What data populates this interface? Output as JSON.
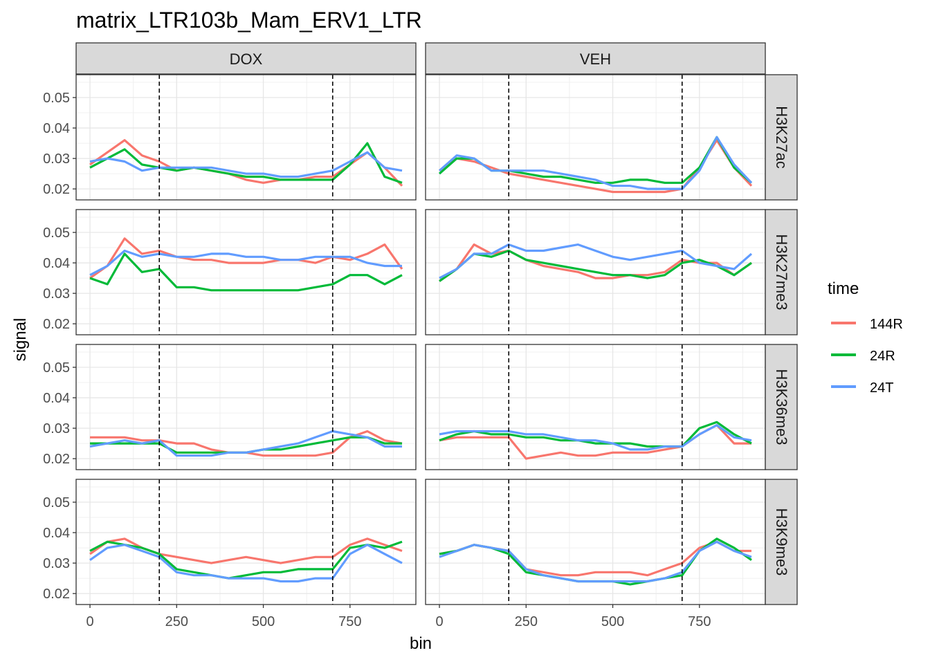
{
  "chart_data": {
    "type": "line",
    "title": "matrix_LTR103b_Mam_ERV1_LTR",
    "xlabel": "bin",
    "ylabel": "signal",
    "xlim": [
      -40,
      940
    ],
    "ylim": [
      0.0164,
      0.0575
    ],
    "x_ticks": [
      0,
      250,
      500,
      750
    ],
    "x_tick_labels": [
      "0",
      "250",
      "500",
      "750"
    ],
    "y_ticks": [
      0.02,
      0.03,
      0.04,
      0.05
    ],
    "y_tick_labels": [
      "0.02",
      "0.03",
      "0.04",
      "0.05"
    ],
    "vlines": [
      200,
      700
    ],
    "grid": true,
    "legend": {
      "title": "time",
      "position": "right",
      "entries": [
        "144R",
        "24R",
        "24T"
      ]
    },
    "colors": {
      "144R": "#F8766D",
      "24R": "#00BA38",
      "24T": "#619CFF"
    },
    "col_facets": [
      "DOX",
      "VEH"
    ],
    "row_facets": [
      "H3K27ac",
      "H3K27me3",
      "H3K36me3",
      "H3K9me3"
    ],
    "x": [
      0,
      50,
      100,
      150,
      200,
      250,
      300,
      350,
      400,
      450,
      500,
      550,
      600,
      650,
      700,
      750,
      800,
      850,
      900
    ],
    "panels": {
      "DOX|H3K27ac": {
        "144R": [
          0.028,
          0.032,
          0.036,
          0.031,
          0.029,
          0.026,
          0.027,
          0.026,
          0.025,
          0.023,
          0.022,
          0.023,
          0.023,
          0.024,
          0.024,
          0.028,
          0.032,
          0.027,
          0.021
        ],
        "24R": [
          0.027,
          0.03,
          0.033,
          0.028,
          0.027,
          0.026,
          0.027,
          0.026,
          0.025,
          0.024,
          0.024,
          0.023,
          0.023,
          0.023,
          0.023,
          0.028,
          0.035,
          0.024,
          0.022
        ],
        "24T": [
          0.029,
          0.03,
          0.029,
          0.026,
          0.027,
          0.027,
          0.027,
          0.027,
          0.026,
          0.025,
          0.025,
          0.024,
          0.024,
          0.025,
          0.026,
          0.029,
          0.032,
          0.027,
          0.026
        ]
      },
      "VEH|H3K27ac": {
        "144R": [
          0.026,
          0.03,
          0.029,
          0.027,
          0.025,
          0.024,
          0.023,
          0.022,
          0.021,
          0.02,
          0.019,
          0.019,
          0.019,
          0.019,
          0.02,
          0.027,
          0.036,
          0.027,
          0.021
        ],
        "24R": [
          0.025,
          0.03,
          0.03,
          0.026,
          0.026,
          0.025,
          0.024,
          0.024,
          0.023,
          0.022,
          0.022,
          0.023,
          0.023,
          0.022,
          0.022,
          0.027,
          0.037,
          0.027,
          0.022
        ],
        "24T": [
          0.026,
          0.031,
          0.03,
          0.026,
          0.026,
          0.026,
          0.026,
          0.025,
          0.024,
          0.023,
          0.021,
          0.021,
          0.02,
          0.02,
          0.02,
          0.026,
          0.037,
          0.028,
          0.022
        ]
      },
      "DOX|H3K27me3": {
        "144R": [
          0.035,
          0.039,
          0.048,
          0.043,
          0.044,
          0.042,
          0.041,
          0.041,
          0.04,
          0.04,
          0.04,
          0.041,
          0.041,
          0.04,
          0.042,
          0.041,
          0.043,
          0.046,
          0.038
        ],
        "24R": [
          0.035,
          0.033,
          0.043,
          0.037,
          0.038,
          0.032,
          0.032,
          0.031,
          0.031,
          0.031,
          0.031,
          0.031,
          0.031,
          0.032,
          0.033,
          0.036,
          0.036,
          0.033,
          0.036
        ],
        "24T": [
          0.036,
          0.039,
          0.044,
          0.042,
          0.043,
          0.042,
          0.042,
          0.043,
          0.043,
          0.042,
          0.042,
          0.041,
          0.041,
          0.042,
          0.042,
          0.042,
          0.04,
          0.039,
          0.039
        ]
      },
      "VEH|H3K27me3": {
        "144R": [
          0.034,
          0.038,
          0.046,
          0.043,
          0.044,
          0.041,
          0.039,
          0.038,
          0.037,
          0.035,
          0.035,
          0.036,
          0.036,
          0.037,
          0.041,
          0.04,
          0.04,
          0.036,
          0.04
        ],
        "24R": [
          0.034,
          0.038,
          0.043,
          0.042,
          0.044,
          0.041,
          0.04,
          0.039,
          0.038,
          0.037,
          0.036,
          0.036,
          0.035,
          0.036,
          0.04,
          0.041,
          0.039,
          0.036,
          0.04
        ],
        "24T": [
          0.035,
          0.038,
          0.043,
          0.043,
          0.046,
          0.044,
          0.044,
          0.045,
          0.046,
          0.044,
          0.042,
          0.041,
          0.042,
          0.043,
          0.044,
          0.04,
          0.039,
          0.038,
          0.043
        ]
      },
      "DOX|H3K36me3": {
        "144R": [
          0.027,
          0.027,
          0.027,
          0.026,
          0.026,
          0.025,
          0.025,
          0.023,
          0.022,
          0.022,
          0.021,
          0.021,
          0.021,
          0.021,
          0.022,
          0.027,
          0.029,
          0.026,
          0.025
        ],
        "24R": [
          0.025,
          0.025,
          0.025,
          0.025,
          0.025,
          0.022,
          0.022,
          0.022,
          0.022,
          0.022,
          0.023,
          0.023,
          0.024,
          0.025,
          0.026,
          0.027,
          0.027,
          0.025,
          0.025
        ],
        "24T": [
          0.024,
          0.025,
          0.026,
          0.025,
          0.026,
          0.021,
          0.021,
          0.021,
          0.022,
          0.022,
          0.023,
          0.024,
          0.025,
          0.027,
          0.029,
          0.028,
          0.027,
          0.024,
          0.024
        ]
      },
      "VEH|H3K36me3": {
        "144R": [
          0.026,
          0.027,
          0.027,
          0.027,
          0.027,
          0.02,
          0.021,
          0.022,
          0.021,
          0.021,
          0.022,
          0.022,
          0.022,
          0.023,
          0.024,
          0.028,
          0.031,
          0.025,
          0.025
        ],
        "24R": [
          0.026,
          0.028,
          0.029,
          0.028,
          0.028,
          0.027,
          0.027,
          0.026,
          0.026,
          0.025,
          0.025,
          0.025,
          0.024,
          0.024,
          0.024,
          0.03,
          0.032,
          0.028,
          0.025
        ],
        "24T": [
          0.028,
          0.029,
          0.029,
          0.029,
          0.029,
          0.028,
          0.028,
          0.027,
          0.026,
          0.026,
          0.025,
          0.023,
          0.023,
          0.024,
          0.024,
          0.028,
          0.031,
          0.027,
          0.026
        ]
      },
      "DOX|H3K9me3": {
        "144R": [
          0.033,
          0.037,
          0.038,
          0.035,
          0.033,
          0.032,
          0.031,
          0.03,
          0.031,
          0.032,
          0.031,
          0.03,
          0.031,
          0.032,
          0.032,
          0.036,
          0.038,
          0.036,
          0.034
        ],
        "24R": [
          0.034,
          0.037,
          0.036,
          0.035,
          0.033,
          0.028,
          0.027,
          0.026,
          0.025,
          0.026,
          0.027,
          0.027,
          0.028,
          0.028,
          0.028,
          0.035,
          0.036,
          0.035,
          0.037
        ],
        "24T": [
          0.031,
          0.035,
          0.036,
          0.034,
          0.032,
          0.027,
          0.026,
          0.026,
          0.025,
          0.025,
          0.025,
          0.024,
          0.024,
          0.025,
          0.025,
          0.033,
          0.036,
          0.033,
          0.03
        ]
      },
      "VEH|H3K9me3": {
        "144R": [
          0.033,
          0.034,
          0.036,
          0.035,
          0.034,
          0.028,
          0.027,
          0.026,
          0.026,
          0.027,
          0.027,
          0.027,
          0.026,
          0.028,
          0.03,
          0.035,
          0.037,
          0.034,
          0.034
        ],
        "24R": [
          0.033,
          0.034,
          0.036,
          0.035,
          0.033,
          0.027,
          0.026,
          0.025,
          0.024,
          0.024,
          0.024,
          0.023,
          0.024,
          0.025,
          0.026,
          0.034,
          0.038,
          0.035,
          0.031
        ],
        "24T": [
          0.032,
          0.034,
          0.036,
          0.035,
          0.034,
          0.028,
          0.026,
          0.025,
          0.024,
          0.024,
          0.024,
          0.024,
          0.024,
          0.025,
          0.027,
          0.034,
          0.037,
          0.034,
          0.032
        ]
      }
    }
  }
}
